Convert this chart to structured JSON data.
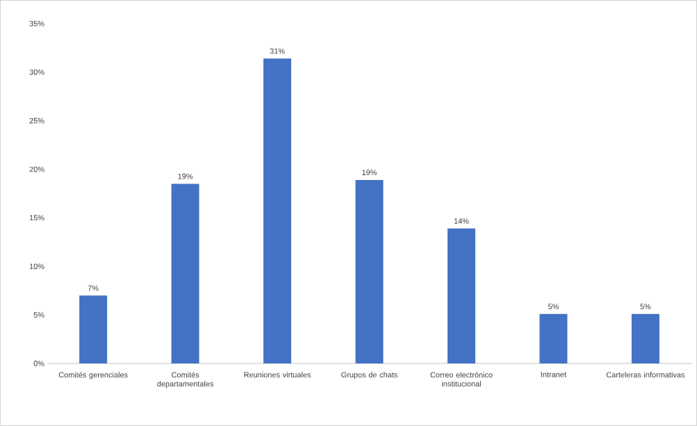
{
  "chart_data": {
    "type": "bar",
    "categories": [
      "Comités gerenciales",
      "Comités departamentales",
      "Reuniones virtuales",
      "Grupos de chats",
      "Correo electrónico institucional",
      "Intranet",
      "Carteleras informativas"
    ],
    "values": [
      7.0,
      18.5,
      31.4,
      18.9,
      13.9,
      5.1,
      5.1
    ],
    "value_labels": [
      "7%",
      "19%",
      "31%",
      "19%",
      "14%",
      "5%",
      "5%"
    ],
    "color": "#4472c4",
    "ylim": [
      0,
      35
    ],
    "yticks": [
      {
        "value": 0,
        "label": "0%"
      },
      {
        "value": 5,
        "label": "5%"
      },
      {
        "value": 10,
        "label": "10%"
      },
      {
        "value": 15,
        "label": "15%"
      },
      {
        "value": 20,
        "label": "20%"
      },
      {
        "value": 25,
        "label": "25%"
      },
      {
        "value": 30,
        "label": "30%"
      },
      {
        "value": 35,
        "label": "35%"
      }
    ]
  }
}
